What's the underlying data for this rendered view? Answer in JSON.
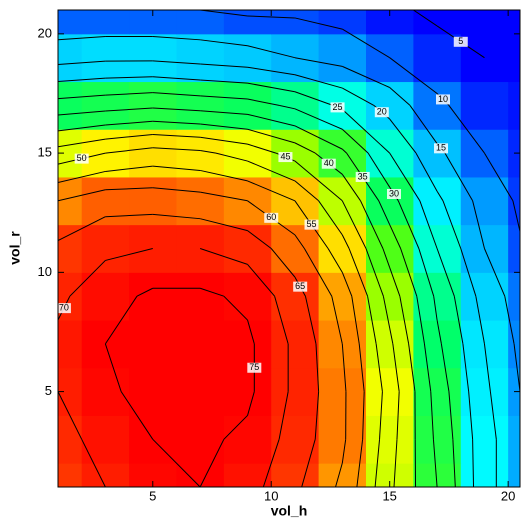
{
  "chart_data": {
    "type": "contour",
    "xlabel": "vol_h",
    "ylabel": "vol_r",
    "x": [
      1,
      3,
      5,
      7,
      9,
      11,
      13,
      15,
      17,
      19,
      21
    ],
    "y": [
      1,
      3,
      5,
      7,
      9,
      11,
      13,
      15,
      17,
      19,
      21
    ],
    "z": [
      [
        66,
        70,
        74,
        75,
        72,
        66,
        59,
        46,
        35,
        22,
        14
      ],
      [
        68,
        72,
        75,
        76,
        74,
        68,
        61,
        47,
        34,
        22,
        14
      ],
      [
        70,
        74,
        77,
        78,
        76,
        69,
        61,
        48,
        33,
        21,
        13
      ],
      [
        71,
        75,
        78,
        78,
        76,
        69,
        60,
        46,
        31,
        20,
        12
      ],
      [
        69,
        73,
        76,
        76,
        74,
        67,
        58,
        43,
        29,
        18,
        11
      ],
      [
        66,
        69,
        70,
        70,
        68,
        62,
        52,
        38,
        25,
        15,
        9
      ],
      [
        60,
        63,
        63,
        62,
        60,
        55,
        45,
        32,
        21,
        13,
        8
      ],
      [
        47,
        50,
        52,
        51,
        48,
        43,
        36,
        25,
        16,
        10,
        7
      ],
      [
        32,
        33,
        34,
        33,
        32,
        29,
        24,
        18,
        11,
        7,
        6
      ],
      [
        18,
        19,
        19,
        18,
        17,
        15,
        13,
        10,
        7,
        5,
        5
      ],
      [
        10,
        10,
        10,
        10,
        9,
        9,
        8,
        6,
        4,
        3,
        3
      ]
    ],
    "levels": [
      5,
      10,
      15,
      20,
      25,
      30,
      35,
      40,
      45,
      50,
      55,
      60,
      65,
      70,
      75
    ],
    "colormap": [
      "#0000ff",
      "#00aaff",
      "#00ffff",
      "#00ff66",
      "#66ff00",
      "#ffff00",
      "#ffaa00",
      "#ff3300",
      "#ff0000"
    ],
    "xlim": [
      1,
      20.5
    ],
    "ylim": [
      1,
      21
    ],
    "xticks": [
      5,
      10,
      15,
      20
    ],
    "yticks": [
      5,
      10,
      15,
      20
    ]
  }
}
